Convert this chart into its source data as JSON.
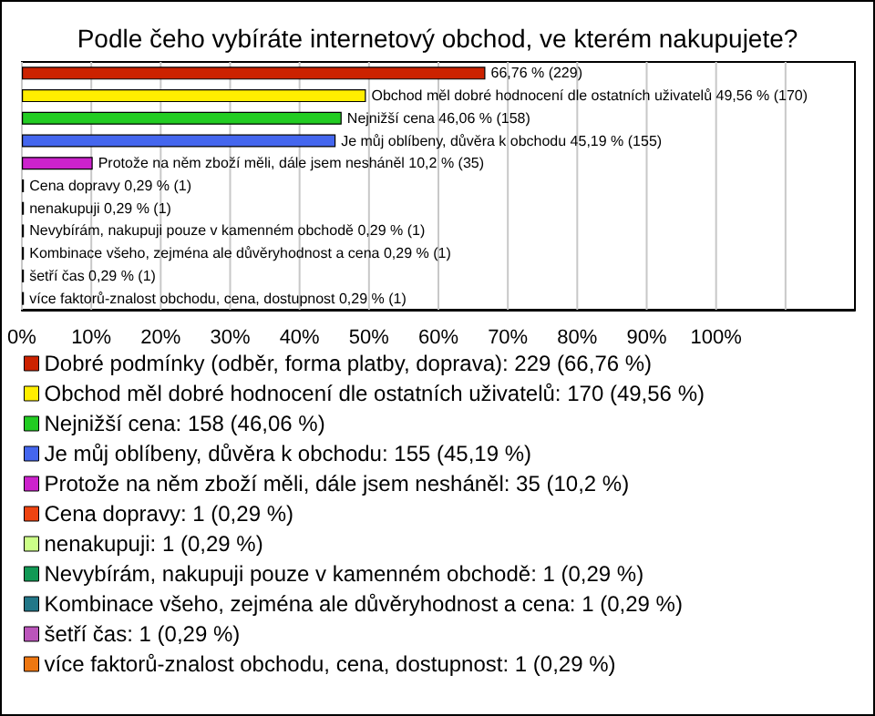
{
  "chart_data": {
    "type": "bar",
    "orientation": "horizontal",
    "stacked": true,
    "title": "Podle čeho vybíráte internetový obchod, ve kterém nakupujete?",
    "categories": [
      null,
      null,
      null,
      null,
      null,
      null,
      null,
      null,
      null,
      null,
      null
    ],
    "series": [
      {
        "name": "Dobré podmínky (odběr, forma platby, doprava): 229 (66,76 %)",
        "color": "#cc2200",
        "values": [
          66.76,
          null,
          null,
          null,
          null,
          null,
          null,
          null,
          null,
          null,
          null
        ],
        "value_labels": [
          "66,76 % (229)",
          null,
          null,
          null,
          null,
          null,
          null,
          null,
          null,
          null,
          null
        ]
      },
      {
        "name": "Obchod měl dobré hodnocení dle ostatních uživatelů: 170 (49,56 %)",
        "color": "#ffee00",
        "values": [
          null,
          49.56,
          null,
          null,
          null,
          null,
          null,
          null,
          null,
          null,
          null
        ],
        "value_labels": [
          null,
          "Obchod měl dobré hodnocení dle ostatních uživatelů 49,56 % (170)",
          null,
          null,
          null,
          null,
          null,
          null,
          null,
          null,
          null
        ]
      },
      {
        "name": "Nejnižší cena: 158 (46,06 %)",
        "color": "#22cc22",
        "values": [
          null,
          null,
          46.06,
          null,
          null,
          null,
          null,
          null,
          null,
          null,
          null
        ],
        "value_labels": [
          null,
          null,
          "Nejnižší cena 46,06 % (158)",
          null,
          null,
          null,
          null,
          null,
          null,
          null,
          null
        ]
      },
      {
        "name": "Je můj oblíbeny, důvěra k obchodu: 155 (45,19 %)",
        "color": "#4466ee",
        "values": [
          null,
          null,
          null,
          45.19,
          null,
          null,
          null,
          null,
          null,
          null,
          null
        ],
        "value_labels": [
          null,
          null,
          null,
          "Je můj oblíbeny, důvěra k obchodu 45,19 % (155)",
          null,
          null,
          null,
          null,
          null,
          null,
          null
        ]
      },
      {
        "name": "Protože na něm zboží měli, dále jsem nesháněl: 35 (10,2 %)",
        "color": "#cc22cc",
        "values": [
          null,
          null,
          null,
          null,
          10.2,
          null,
          null,
          null,
          null,
          null,
          null
        ],
        "value_labels": [
          null,
          null,
          null,
          null,
          "Protože na něm zboží měli, dále jsem nesháněl 10,2 % (35)",
          null,
          null,
          null,
          null,
          null,
          null
        ]
      },
      {
        "name": "Cena dopravy: 1 (0,29 %)",
        "color": "#ee4411",
        "values": [
          null,
          null,
          null,
          null,
          null,
          0.29,
          null,
          null,
          null,
          null,
          null
        ],
        "value_labels": [
          null,
          null,
          null,
          null,
          null,
          "Cena dopravy 0,29 % (1)",
          null,
          null,
          null,
          null,
          null
        ]
      },
      {
        "name": "nenakupuji: 1 (0,29 %)",
        "color": "#ccff88",
        "values": [
          null,
          null,
          null,
          null,
          null,
          null,
          0.29,
          null,
          null,
          null,
          null
        ],
        "value_labels": [
          null,
          null,
          null,
          null,
          null,
          null,
          "nenakupuji 0,29 % (1)",
          null,
          null,
          null,
          null
        ]
      },
      {
        "name": "Nevybírám, nakupuji pouze v kamenném obchodě: 1 (0,29 %)",
        "color": "#119955",
        "values": [
          null,
          null,
          null,
          null,
          null,
          null,
          null,
          0.29,
          null,
          null,
          null
        ],
        "value_labels": [
          null,
          null,
          null,
          null,
          null,
          null,
          null,
          "Nevybírám, nakupuji pouze v kamenném obchodě 0,29 % (1)",
          null,
          null,
          null
        ]
      },
      {
        "name": "Kombinace všeho, zejména ale důvěryhodnost a cena: 1 (0,29 %)",
        "color": "#227788",
        "values": [
          null,
          null,
          null,
          null,
          null,
          null,
          null,
          null,
          0.29,
          null,
          null
        ],
        "value_labels": [
          null,
          null,
          null,
          null,
          null,
          null,
          null,
          null,
          "Kombinace všeho, zejména ale důvěryhodnost a cena 0,29 % (1)",
          null,
          null
        ]
      },
      {
        "name": "šetří čas: 1 (0,29 %)",
        "color": "#bb55bb",
        "values": [
          null,
          null,
          null,
          null,
          null,
          null,
          null,
          null,
          null,
          0.29,
          null
        ],
        "value_labels": [
          null,
          null,
          null,
          null,
          null,
          null,
          null,
          null,
          null,
          "šetří čas 0,29 % (1)",
          null
        ]
      },
      {
        "name": "více faktorů-znalost obchodu, cena, dostupnost: 1 (0,29 %)",
        "color": "#ee7711",
        "values": [
          null,
          null,
          null,
          null,
          null,
          null,
          null,
          null,
          null,
          null,
          0.29
        ],
        "value_labels": [
          null,
          null,
          null,
          null,
          null,
          null,
          null,
          null,
          null,
          null,
          "více faktorů-znalost obchodu, cena, dostupnost 0,29 % (1)"
        ]
      }
    ],
    "xlim": [
      0,
      120
    ],
    "xticks": [
      {
        "value": 0,
        "label": "0%"
      },
      {
        "value": 10,
        "label": "10%"
      },
      {
        "value": 20,
        "label": "20%"
      },
      {
        "value": 30,
        "label": "30%"
      },
      {
        "value": 40,
        "label": "40%"
      },
      {
        "value": 50,
        "label": "50%"
      },
      {
        "value": 60,
        "label": "60%"
      },
      {
        "value": 70,
        "label": "70%"
      },
      {
        "value": 80,
        "label": "80%"
      },
      {
        "value": 90,
        "label": "90%"
      },
      {
        "value": 100,
        "label": "100%"
      },
      {
        "value": 110,
        "label": null
      }
    ],
    "grid": "x",
    "legend": "bottom",
    "tick_labels": "x"
  }
}
